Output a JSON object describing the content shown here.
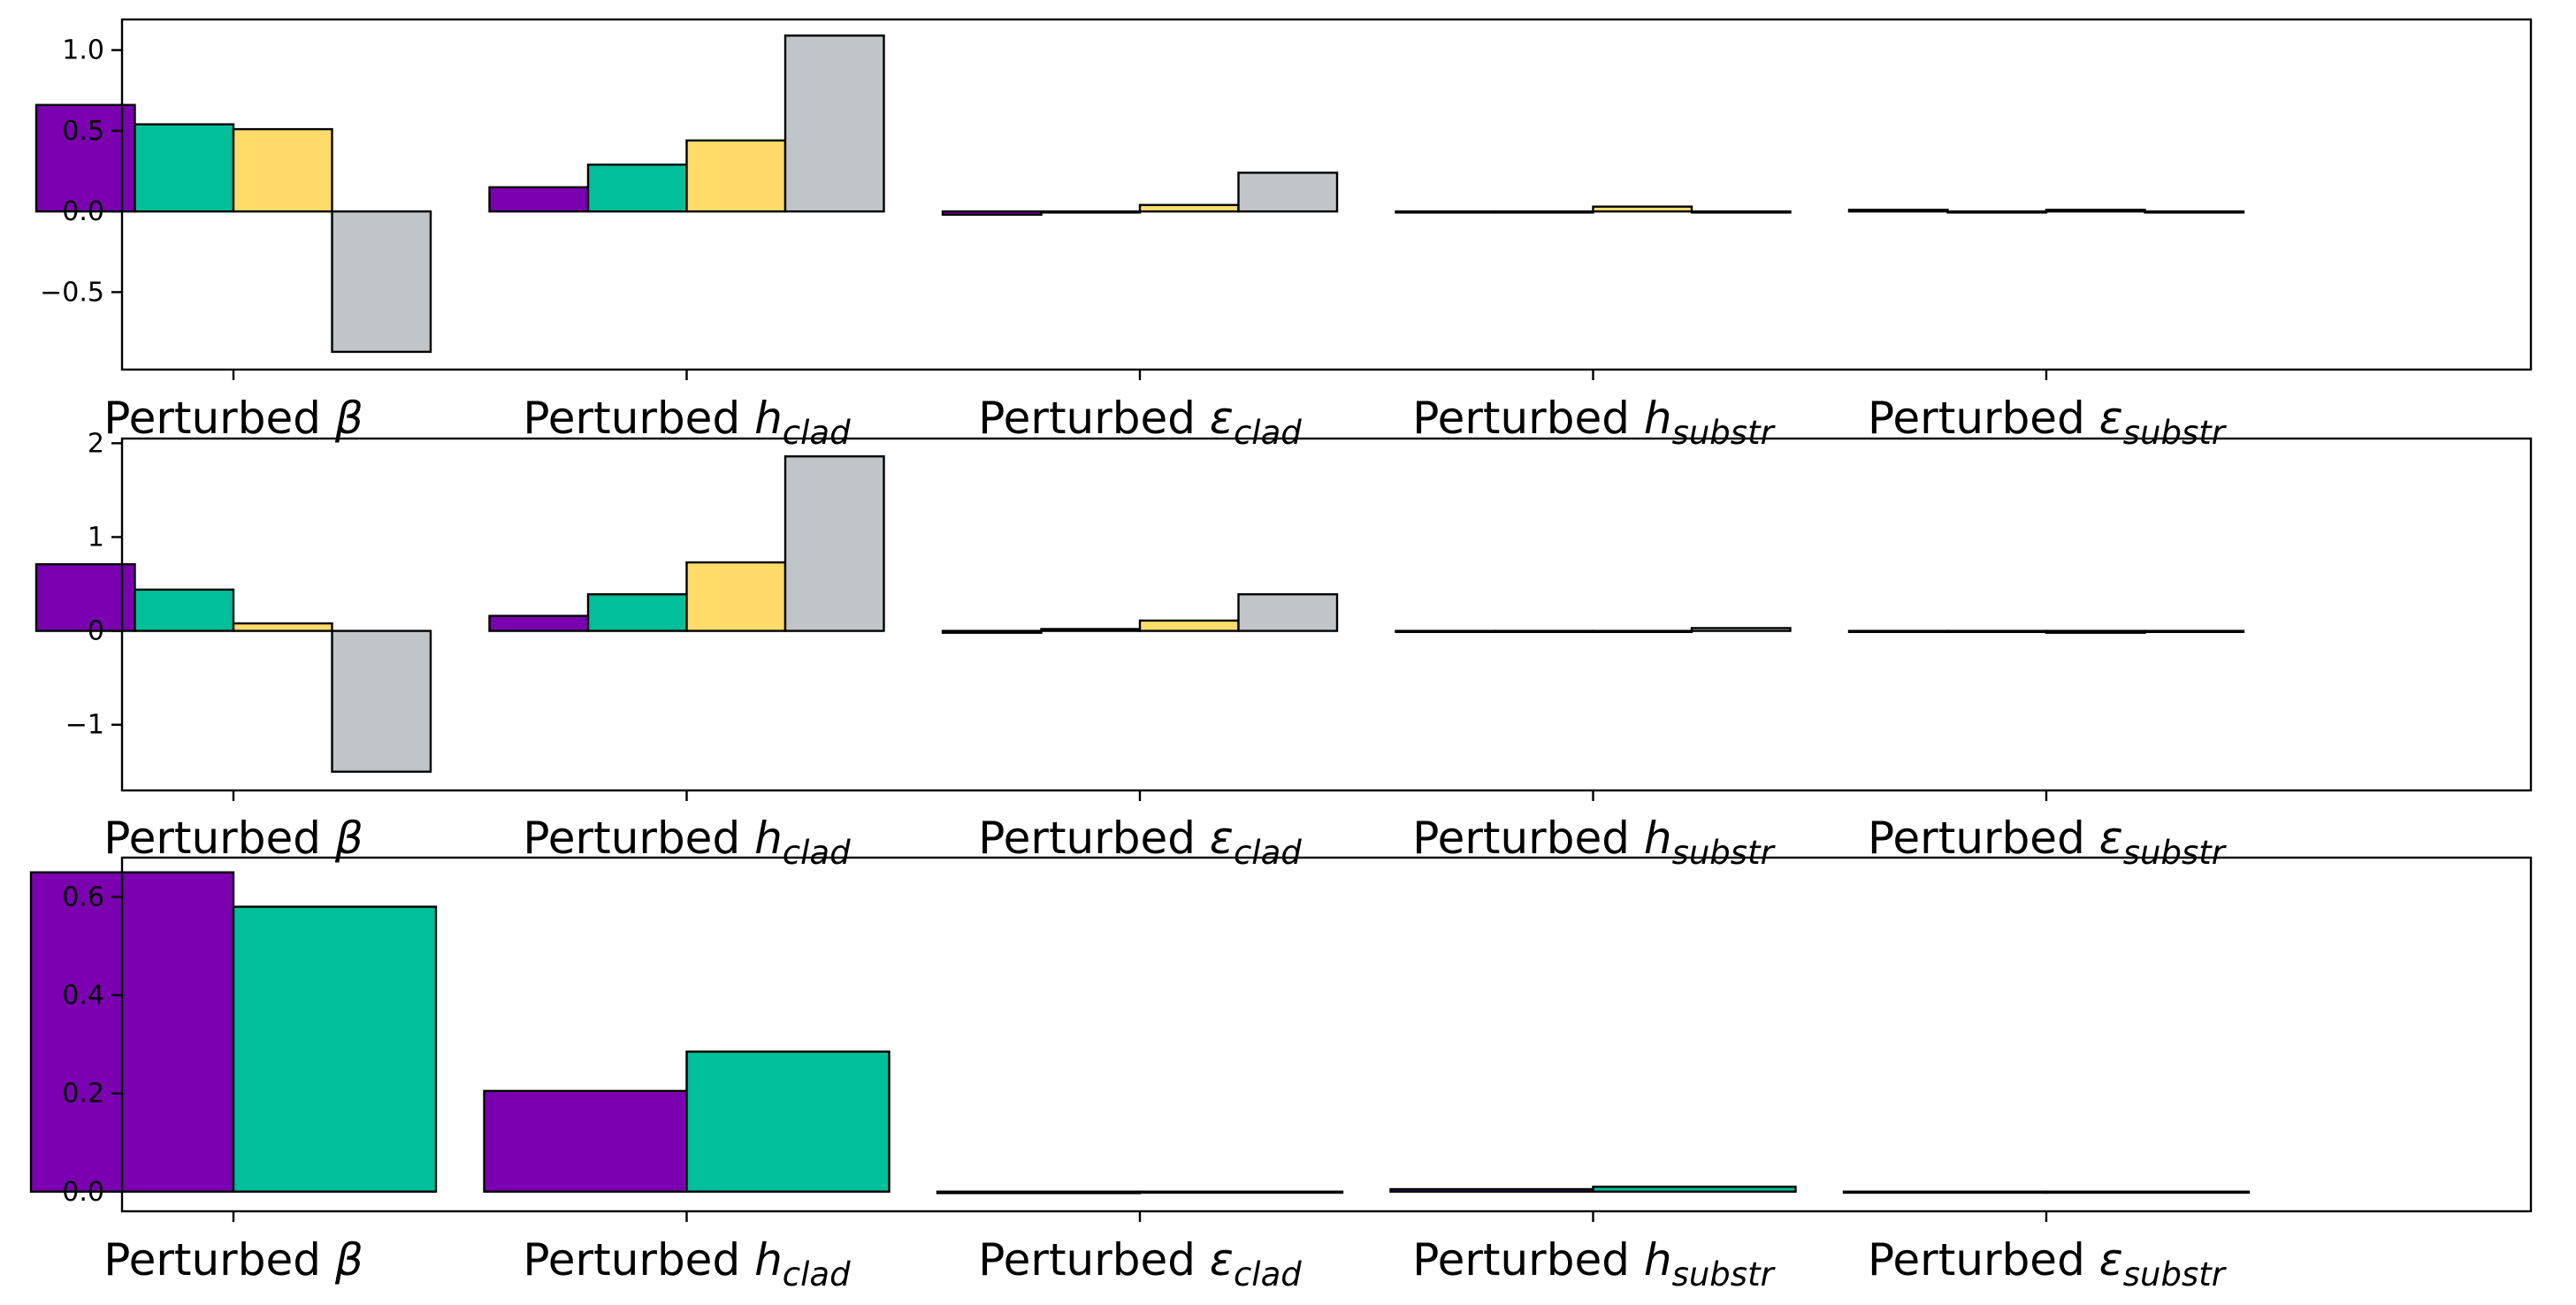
{
  "colors": {
    "series": [
      "#7a00b0",
      "#00bf9a",
      "#ffdc69",
      "#bfc5c8"
    ],
    "edge": "#000000",
    "background": "#ffffff"
  },
  "chart_data": [
    {
      "type": "bar",
      "title": "",
      "xlabel": "",
      "ylabel": "",
      "ylim": [
        -0.98,
        1.19
      ],
      "yticks": [
        -0.5,
        0.0,
        0.5,
        1.0
      ],
      "ytick_labels": [
        "−0.5",
        "0.0",
        "0.5",
        "1.0"
      ],
      "grid": false,
      "categories": [
        {
          "prefix": "Perturbed ",
          "symbol": "β",
          "subscript": ""
        },
        {
          "prefix": "Perturbed ",
          "symbol": "h",
          "subscript": "clad"
        },
        {
          "prefix": "Perturbed ",
          "symbol": "ε",
          "subscript": "clad"
        },
        {
          "prefix": "Perturbed ",
          "symbol": "h",
          "subscript": "substr"
        },
        {
          "prefix": "Perturbed ",
          "symbol": "ε",
          "subscript": "substr"
        }
      ],
      "series": [
        {
          "values": [
            0.66,
            0.15,
            -0.02,
            0.0,
            0.01
          ]
        },
        {
          "values": [
            0.54,
            0.29,
            0.0,
            0.0,
            0.0
          ]
        },
        {
          "values": [
            0.51,
            0.44,
            0.04,
            0.03,
            0.01
          ]
        },
        {
          "values": [
            -0.87,
            1.09,
            0.24,
            0.0,
            0.0
          ]
        }
      ]
    },
    {
      "type": "bar",
      "title": "",
      "xlabel": "",
      "ylabel": "",
      "ylim": [
        -1.7,
        2.05
      ],
      "yticks": [
        -1,
        0,
        1,
        2
      ],
      "ytick_labels": [
        "−1",
        "0",
        "1",
        "2"
      ],
      "grid": false,
      "categories": [
        {
          "prefix": "Perturbed ",
          "symbol": "β",
          "subscript": ""
        },
        {
          "prefix": "Perturbed ",
          "symbol": "h",
          "subscript": "clad"
        },
        {
          "prefix": "Perturbed ",
          "symbol": "ε",
          "subscript": "clad"
        },
        {
          "prefix": "Perturbed ",
          "symbol": "h",
          "subscript": "substr"
        },
        {
          "prefix": "Perturbed ",
          "symbol": "ε",
          "subscript": "substr"
        }
      ],
      "series": [
        {
          "values": [
            0.71,
            0.16,
            -0.02,
            0.0,
            0.0
          ]
        },
        {
          "values": [
            0.44,
            0.39,
            0.02,
            0.0,
            0.0
          ]
        },
        {
          "values": [
            0.08,
            0.73,
            0.11,
            0.0,
            -0.02
          ]
        },
        {
          "values": [
            -1.5,
            1.86,
            0.39,
            0.03,
            0.0
          ]
        }
      ]
    },
    {
      "type": "bar",
      "title": "",
      "xlabel": "",
      "ylabel": "",
      "ylim": [
        -0.04,
        0.68
      ],
      "yticks": [
        0.0,
        0.2,
        0.4,
        0.6
      ],
      "ytick_labels": [
        "0.0",
        "0.2",
        "0.4",
        "0.6"
      ],
      "grid": false,
      "categories": [
        {
          "prefix": "Perturbed ",
          "symbol": "β",
          "subscript": ""
        },
        {
          "prefix": "Perturbed ",
          "symbol": "h",
          "subscript": "clad"
        },
        {
          "prefix": "Perturbed ",
          "symbol": "ε",
          "subscript": "clad"
        },
        {
          "prefix": "Perturbed ",
          "symbol": "h",
          "subscript": "substr"
        },
        {
          "prefix": "Perturbed ",
          "symbol": "ε",
          "subscript": "substr"
        }
      ],
      "series": [
        {
          "values": [
            0.65,
            0.205,
            -0.003,
            0.005,
            0.0
          ]
        },
        {
          "values": [
            0.58,
            0.285,
            0.0,
            0.01,
            0.0
          ]
        }
      ]
    }
  ]
}
